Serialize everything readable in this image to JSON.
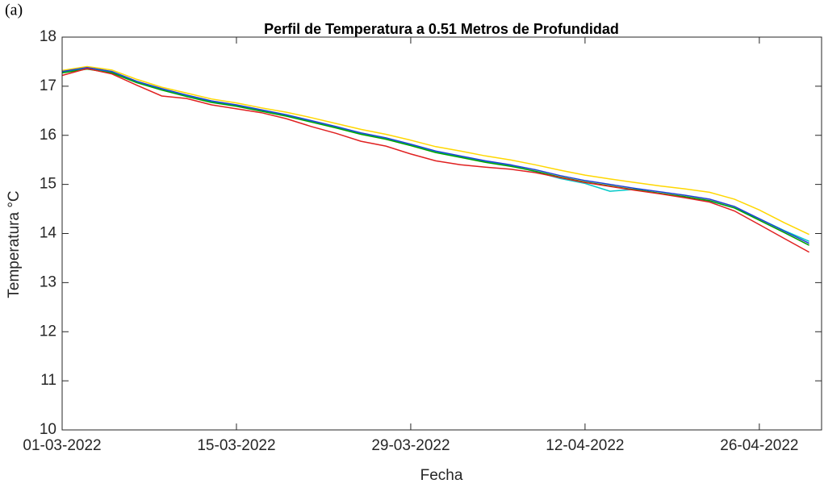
{
  "panel_label": "(a)",
  "chart_data": {
    "type": "line",
    "title": "Perfil de Temperatura a 0.51 Metros de Profundidad",
    "xlabel": "Fecha",
    "ylabel": "Temperatura °C",
    "x": [
      "2022-03-01",
      "2022-03-03",
      "2022-03-05",
      "2022-03-07",
      "2022-03-09",
      "2022-03-11",
      "2022-03-13",
      "2022-03-15",
      "2022-03-17",
      "2022-03-19",
      "2022-03-21",
      "2022-03-23",
      "2022-03-25",
      "2022-03-27",
      "2022-03-29",
      "2022-03-31",
      "2022-04-02",
      "2022-04-04",
      "2022-04-06",
      "2022-04-08",
      "2022-04-10",
      "2022-04-12",
      "2022-04-14",
      "2022-04-16",
      "2022-04-18",
      "2022-04-20",
      "2022-04-22",
      "2022-04-24",
      "2022-04-26",
      "2022-04-28",
      "2022-04-30"
    ],
    "series": [
      {
        "color": "#ffd700",
        "values": [
          17.32,
          17.4,
          17.33,
          17.14,
          16.98,
          16.86,
          16.74,
          16.66,
          16.56,
          16.47,
          16.36,
          16.24,
          16.12,
          16.02,
          15.9,
          15.77,
          15.68,
          15.58,
          15.5,
          15.4,
          15.29,
          15.19,
          15.11,
          15.04,
          14.97,
          14.91,
          14.84,
          14.7,
          14.48,
          14.22,
          13.98
        ]
      },
      {
        "color": "#00c8c8",
        "values": [
          17.28,
          17.36,
          17.28,
          17.09,
          16.94,
          16.8,
          16.69,
          16.6,
          16.51,
          16.41,
          16.29,
          16.17,
          16.04,
          15.94,
          15.81,
          15.66,
          15.56,
          15.47,
          15.39,
          15.26,
          15.12,
          15.02,
          14.86,
          14.9,
          14.82,
          14.74,
          14.66,
          14.52,
          14.3,
          14.06,
          13.84
        ]
      },
      {
        "color": "#00a000",
        "values": [
          17.27,
          17.35,
          17.27,
          17.07,
          16.92,
          16.79,
          16.67,
          16.59,
          16.49,
          16.39,
          16.27,
          16.15,
          16.02,
          15.92,
          15.79,
          15.65,
          15.55,
          15.45,
          15.37,
          15.27,
          15.15,
          15.05,
          14.97,
          14.89,
          14.82,
          14.75,
          14.67,
          14.52,
          14.27,
          14.02,
          13.76
        ]
      },
      {
        "color": "#1f3fd0",
        "values": [
          17.3,
          17.38,
          17.3,
          17.1,
          16.95,
          16.82,
          16.7,
          16.62,
          16.52,
          16.42,
          16.3,
          16.18,
          16.05,
          15.95,
          15.82,
          15.68,
          15.58,
          15.48,
          15.4,
          15.3,
          15.18,
          15.08,
          15.0,
          14.92,
          14.85,
          14.78,
          14.7,
          14.55,
          14.3,
          14.05,
          13.8
        ]
      },
      {
        "color": "#e02020",
        "values": [
          17.22,
          17.36,
          17.25,
          17.02,
          16.8,
          16.75,
          16.62,
          16.54,
          16.46,
          16.34,
          16.18,
          16.04,
          15.88,
          15.78,
          15.62,
          15.48,
          15.4,
          15.35,
          15.31,
          15.24,
          15.14,
          15.04,
          14.96,
          14.88,
          14.81,
          14.73,
          14.64,
          14.46,
          14.18,
          13.9,
          13.62
        ]
      }
    ],
    "xlim": [
      "2022-03-01",
      "2022-05-01"
    ],
    "xticks": [
      {
        "value": "2022-03-01",
        "label": "01-03-2022"
      },
      {
        "value": "2022-03-15",
        "label": "15-03-2022"
      },
      {
        "value": "2022-03-29",
        "label": "29-03-2022"
      },
      {
        "value": "2022-04-12",
        "label": "12-04-2022"
      },
      {
        "value": "2022-04-26",
        "label": "26-04-2022"
      }
    ],
    "ylim": [
      10,
      18
    ],
    "yticks": [
      10,
      11,
      12,
      13,
      14,
      15,
      16,
      17,
      18
    ],
    "grid": false
  }
}
